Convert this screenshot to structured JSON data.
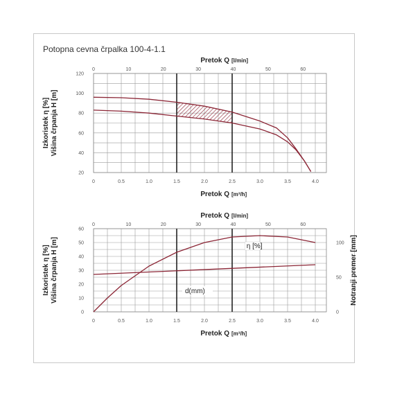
{
  "title": "Potopna cevna črpalka 100-4-1.1",
  "colors": {
    "curve": "#8b2535",
    "grid": "#9a9a9a",
    "vline": "#222222"
  },
  "chart_data": [
    {
      "type": "line",
      "name_top_axis": "Pretok Q",
      "top_axis_unit": "[l/min]",
      "top_ticks": [
        "0",
        "10",
        "20",
        "30",
        "40",
        "50",
        "60"
      ],
      "top_xlim": [
        0,
        66.7
      ],
      "xlabel": "Pretok Q",
      "xlabel_unit": "[m³/h]",
      "x_ticks": [
        "0",
        "0.5",
        "1.0",
        "1.5",
        "2.0",
        "2.5",
        "3.0",
        "3.5",
        "4.0"
      ],
      "xlim": [
        0,
        4.2
      ],
      "ylabel_1": "Izkoristek η [%]",
      "ylabel_2": "Višina črpanja H [m]",
      "y_ticks": [
        "20",
        "40",
        "60",
        "80",
        "100",
        "120"
      ],
      "ylim": [
        20,
        120
      ],
      "vlines": [
        1.5,
        2.5
      ],
      "series": [
        {
          "x": [
            0,
            0.5,
            1.0,
            1.5,
            2.0,
            2.5,
            3.0,
            3.3,
            3.5,
            3.65,
            3.8,
            3.92
          ],
          "y": [
            96,
            95.5,
            94,
            91,
            87,
            81,
            72,
            65,
            55,
            44,
            32,
            21
          ]
        },
        {
          "x": [
            0,
            0.5,
            1.0,
            1.5,
            2.0,
            2.5,
            3.0,
            3.3,
            3.5,
            3.65,
            3.8,
            3.92
          ],
          "y": [
            83,
            82,
            80,
            77,
            74,
            70,
            64,
            58,
            51,
            43,
            32,
            21
          ]
        }
      ],
      "hatch_range": [
        1.5,
        2.5
      ]
    },
    {
      "type": "line",
      "name_top_axis": "Pretok Q",
      "top_axis_unit": "[l/min]",
      "top_ticks": [
        "0",
        "10",
        "20",
        "30",
        "40",
        "50",
        "60"
      ],
      "top_xlim": [
        0,
        66.7
      ],
      "xlabel": "Pretok Q",
      "xlabel_unit": "[m³/h]",
      "x_ticks": [
        "0",
        "0.5",
        "1.0",
        "1.5",
        "2.0",
        "2.5",
        "3.0",
        "3.5",
        "4.0"
      ],
      "xlim": [
        0,
        4.2
      ],
      "ylabel_1": "Izkoristek η [%]",
      "ylabel_2": "Višina črpanja H [m]",
      "y_ticks": [
        "0",
        "10",
        "20",
        "30",
        "40",
        "50",
        "60"
      ],
      "ylim": [
        0,
        60
      ],
      "y2label": "Notranji premer [mm]",
      "y2_ticks": [
        "0",
        "50",
        "100"
      ],
      "y2lim": [
        0,
        120
      ],
      "vlines": [
        1.5,
        2.5
      ],
      "annotations": [
        "η [%]",
        "d(mm)"
      ],
      "series": [
        {
          "name": "η [%]",
          "x": [
            0,
            0.25,
            0.5,
            1.0,
            1.5,
            2.0,
            2.5,
            3.0,
            3.5,
            4.0
          ],
          "y": [
            0,
            10,
            19,
            33,
            43,
            50,
            54,
            55,
            54,
            50
          ]
        },
        {
          "name": "d(mm)",
          "x": [
            0,
            4.0
          ],
          "y": [
            27,
            34
          ]
        }
      ]
    }
  ]
}
